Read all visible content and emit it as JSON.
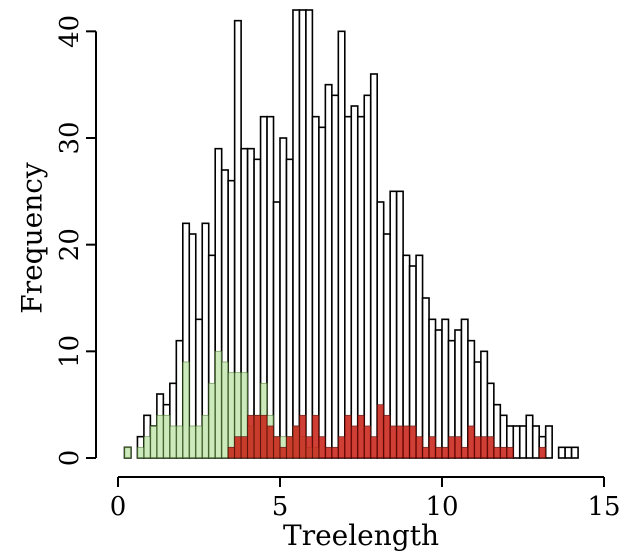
{
  "chart_data": {
    "type": "bar",
    "subtype": "overlaid-histogram",
    "title": "",
    "xlabel": "Treelength",
    "ylabel": "Frequency",
    "xlim": [
      0,
      15
    ],
    "ylim": [
      0,
      42
    ],
    "x_ticks": [
      0,
      5,
      10,
      15
    ],
    "y_ticks": [
      0,
      10,
      20,
      30,
      40
    ],
    "bin_width": 0.2,
    "grid": false,
    "legend": "none",
    "series": [
      {
        "name": "",
        "fill": "#ffffff",
        "stroke": "#000000",
        "bins": [
          {
            "x0": 0.2,
            "count": 1
          },
          {
            "x0": 0.4,
            "count": 0
          },
          {
            "x0": 0.6,
            "count": 2
          },
          {
            "x0": 0.8,
            "count": 4
          },
          {
            "x0": 1.0,
            "count": 3
          },
          {
            "x0": 1.2,
            "count": 6
          },
          {
            "x0": 1.4,
            "count": 5
          },
          {
            "x0": 1.6,
            "count": 7
          },
          {
            "x0": 1.8,
            "count": 11
          },
          {
            "x0": 2.0,
            "count": 22
          },
          {
            "x0": 2.2,
            "count": 21
          },
          {
            "x0": 2.4,
            "count": 13
          },
          {
            "x0": 2.6,
            "count": 22
          },
          {
            "x0": 2.8,
            "count": 19
          },
          {
            "x0": 3.0,
            "count": 29
          },
          {
            "x0": 3.2,
            "count": 27
          },
          {
            "x0": 3.4,
            "count": 26
          },
          {
            "x0": 3.6,
            "count": 41
          },
          {
            "x0": 3.8,
            "count": 29
          },
          {
            "x0": 4.0,
            "count": 29
          },
          {
            "x0": 4.2,
            "count": 28
          },
          {
            "x0": 4.4,
            "count": 32
          },
          {
            "x0": 4.6,
            "count": 32
          },
          {
            "x0": 4.8,
            "count": 24
          },
          {
            "x0": 5.0,
            "count": 30
          },
          {
            "x0": 5.2,
            "count": 28
          },
          {
            "x0": 5.4,
            "count": 42
          },
          {
            "x0": 5.6,
            "count": 42
          },
          {
            "x0": 5.8,
            "count": 42
          },
          {
            "x0": 6.0,
            "count": 32
          },
          {
            "x0": 6.2,
            "count": 31
          },
          {
            "x0": 6.4,
            "count": 35
          },
          {
            "x0": 6.6,
            "count": 34
          },
          {
            "x0": 6.8,
            "count": 40
          },
          {
            "x0": 7.0,
            "count": 32
          },
          {
            "x0": 7.2,
            "count": 33
          },
          {
            "x0": 7.4,
            "count": 32
          },
          {
            "x0": 7.6,
            "count": 34
          },
          {
            "x0": 7.8,
            "count": 36
          },
          {
            "x0": 8.0,
            "count": 24
          },
          {
            "x0": 8.2,
            "count": 21
          },
          {
            "x0": 8.4,
            "count": 25
          },
          {
            "x0": 8.6,
            "count": 25
          },
          {
            "x0": 8.8,
            "count": 19
          },
          {
            "x0": 9.0,
            "count": 18
          },
          {
            "x0": 9.2,
            "count": 19
          },
          {
            "x0": 9.4,
            "count": 15
          },
          {
            "x0": 9.6,
            "count": 13
          },
          {
            "x0": 9.8,
            "count": 12
          },
          {
            "x0": 10.0,
            "count": 13
          },
          {
            "x0": 10.2,
            "count": 11
          },
          {
            "x0": 10.4,
            "count": 12
          },
          {
            "x0": 10.6,
            "count": 13
          },
          {
            "x0": 10.8,
            "count": 11
          },
          {
            "x0": 11.0,
            "count": 9
          },
          {
            "x0": 11.2,
            "count": 10
          },
          {
            "x0": 11.4,
            "count": 7
          },
          {
            "x0": 11.6,
            "count": 5
          },
          {
            "x0": 11.8,
            "count": 4
          },
          {
            "x0": 12.0,
            "count": 3
          },
          {
            "x0": 12.2,
            "count": 3
          },
          {
            "x0": 12.4,
            "count": 3
          },
          {
            "x0": 12.6,
            "count": 4
          },
          {
            "x0": 12.8,
            "count": 3
          },
          {
            "x0": 13.0,
            "count": 2
          },
          {
            "x0": 13.2,
            "count": 3
          },
          {
            "x0": 13.4,
            "count": 0
          },
          {
            "x0": 13.6,
            "count": 1
          },
          {
            "x0": 13.8,
            "count": 1
          },
          {
            "x0": 14.0,
            "count": 1
          }
        ]
      },
      {
        "name": "",
        "fill": "#b9e2a0",
        "stroke": "#4a7a2a",
        "opacity": 0.7,
        "bins": [
          {
            "x0": 0.2,
            "count": 1
          },
          {
            "x0": 0.4,
            "count": 0
          },
          {
            "x0": 0.6,
            "count": 1
          },
          {
            "x0": 0.8,
            "count": 2
          },
          {
            "x0": 1.0,
            "count": 3
          },
          {
            "x0": 1.2,
            "count": 4
          },
          {
            "x0": 1.4,
            "count": 4
          },
          {
            "x0": 1.6,
            "count": 3
          },
          {
            "x0": 1.8,
            "count": 3
          },
          {
            "x0": 2.0,
            "count": 9
          },
          {
            "x0": 2.2,
            "count": 3
          },
          {
            "x0": 2.4,
            "count": 3
          },
          {
            "x0": 2.6,
            "count": 4
          },
          {
            "x0": 2.8,
            "count": 7
          },
          {
            "x0": 3.0,
            "count": 10
          },
          {
            "x0": 3.2,
            "count": 9
          },
          {
            "x0": 3.4,
            "count": 8
          },
          {
            "x0": 3.6,
            "count": 8
          },
          {
            "x0": 3.8,
            "count": 8
          },
          {
            "x0": 4.0,
            "count": 3
          },
          {
            "x0": 4.2,
            "count": 4
          },
          {
            "x0": 4.4,
            "count": 7
          },
          {
            "x0": 4.6,
            "count": 4
          },
          {
            "x0": 4.8,
            "count": 2
          },
          {
            "x0": 5.0,
            "count": 2
          },
          {
            "x0": 5.2,
            "count": 2
          },
          {
            "x0": 5.4,
            "count": 3
          },
          {
            "x0": 5.6,
            "count": 2
          },
          {
            "x0": 5.8,
            "count": 1
          },
          {
            "x0": 6.0,
            "count": 1
          }
        ]
      },
      {
        "name": "",
        "fill": "#c81e14",
        "stroke": "#5a0a05",
        "opacity": 0.85,
        "bins": [
          {
            "x0": 3.4,
            "count": 1
          },
          {
            "x0": 3.6,
            "count": 2
          },
          {
            "x0": 3.8,
            "count": 2
          },
          {
            "x0": 4.0,
            "count": 4
          },
          {
            "x0": 4.2,
            "count": 4
          },
          {
            "x0": 4.4,
            "count": 4
          },
          {
            "x0": 4.6,
            "count": 3
          },
          {
            "x0": 4.8,
            "count": 2
          },
          {
            "x0": 5.0,
            "count": 1
          },
          {
            "x0": 5.2,
            "count": 2
          },
          {
            "x0": 5.4,
            "count": 3
          },
          {
            "x0": 5.6,
            "count": 4
          },
          {
            "x0": 5.8,
            "count": 2
          },
          {
            "x0": 6.0,
            "count": 4
          },
          {
            "x0": 6.2,
            "count": 2
          },
          {
            "x0": 6.4,
            "count": 1
          },
          {
            "x0": 6.6,
            "count": 1
          },
          {
            "x0": 6.8,
            "count": 2
          },
          {
            "x0": 7.0,
            "count": 4
          },
          {
            "x0": 7.2,
            "count": 3
          },
          {
            "x0": 7.4,
            "count": 4
          },
          {
            "x0": 7.6,
            "count": 3
          },
          {
            "x0": 7.8,
            "count": 2
          },
          {
            "x0": 8.0,
            "count": 5
          },
          {
            "x0": 8.2,
            "count": 4
          },
          {
            "x0": 8.4,
            "count": 3
          },
          {
            "x0": 8.6,
            "count": 3
          },
          {
            "x0": 8.8,
            "count": 3
          },
          {
            "x0": 9.0,
            "count": 3
          },
          {
            "x0": 9.2,
            "count": 2
          },
          {
            "x0": 9.4,
            "count": 1
          },
          {
            "x0": 9.6,
            "count": 2
          },
          {
            "x0": 9.8,
            "count": 1
          },
          {
            "x0": 10.0,
            "count": 1
          },
          {
            "x0": 10.2,
            "count": 2
          },
          {
            "x0": 10.4,
            "count": 2
          },
          {
            "x0": 10.6,
            "count": 1
          },
          {
            "x0": 10.8,
            "count": 3
          },
          {
            "x0": 11.0,
            "count": 2
          },
          {
            "x0": 11.2,
            "count": 2
          },
          {
            "x0": 11.4,
            "count": 2
          },
          {
            "x0": 11.6,
            "count": 1
          },
          {
            "x0": 11.8,
            "count": 1
          },
          {
            "x0": 12.0,
            "count": 1
          },
          {
            "x0": 12.2,
            "count": 0
          },
          {
            "x0": 12.4,
            "count": 0
          },
          {
            "x0": 12.6,
            "count": 0
          },
          {
            "x0": 12.8,
            "count": 0
          },
          {
            "x0": 13.0,
            "count": 1
          }
        ]
      }
    ]
  }
}
